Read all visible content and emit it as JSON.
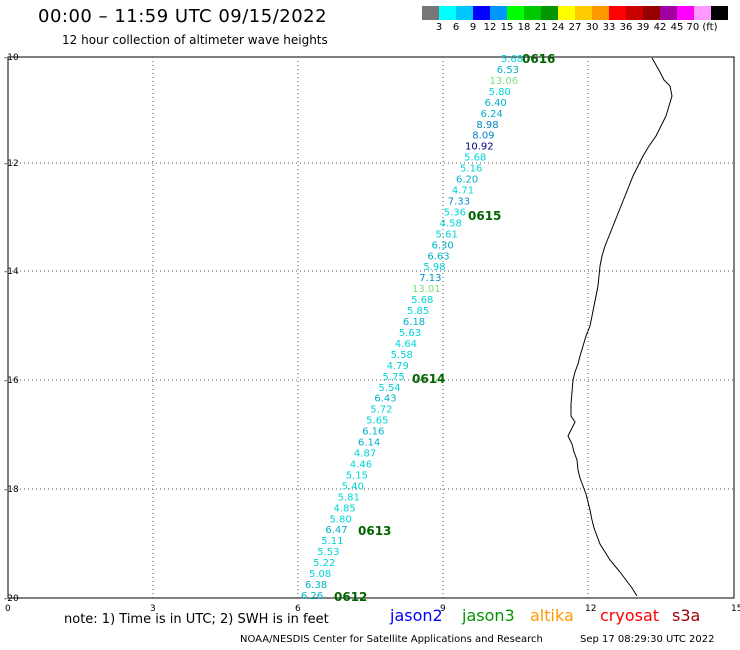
{
  "title": "00:00 – 11:59 UTC 09/15/2022",
  "subtitle": "12 hour collection of altimeter wave heights",
  "legend": {
    "colors": [
      "#777777",
      "#00ffff",
      "#00c8ff",
      "#0000ff",
      "#0098ff",
      "#00ff00",
      "#00c800",
      "#009600",
      "#ffff00",
      "#ffcc00",
      "#ff9900",
      "#ff0000",
      "#c80000",
      "#960000",
      "#a000a0",
      "#ff00ff",
      "#ff99ff",
      "#000000"
    ],
    "labels": [
      "3",
      "6",
      "9",
      "12",
      "15",
      "18",
      "21",
      "24",
      "27",
      "30",
      "33",
      "36",
      "39",
      "42",
      "45",
      "70 (ft)"
    ]
  },
  "axes": {
    "y_labels": [
      "-10",
      "-12",
      "-14",
      "-16",
      "-18",
      "-20"
    ],
    "x_labels": [
      "0",
      "3",
      "6",
      "9",
      "12",
      "15"
    ]
  },
  "times": [
    "0616",
    "0615",
    "0614",
    "0613",
    "0612"
  ],
  "points": [
    {
      "v": "5.68",
      "c": "#00d6d6"
    },
    {
      "v": "6.53",
      "c": "#00b0c8"
    },
    {
      "v": "13.06",
      "c": "#7ee07e"
    },
    {
      "v": "5.80",
      "c": "#00d6d6"
    },
    {
      "v": "6.40",
      "c": "#00b0c8"
    },
    {
      "v": "6.24",
      "c": "#00b0c8"
    },
    {
      "v": "8.98",
      "c": "#0080c0"
    },
    {
      "v": "8.09",
      "c": "#0080c0"
    },
    {
      "v": "10.92",
      "c": "#000080"
    },
    {
      "v": "5.68",
      "c": "#00d6d6"
    },
    {
      "v": "5.16",
      "c": "#00d6d6"
    },
    {
      "v": "6.20",
      "c": "#00b0c8"
    },
    {
      "v": "4.71",
      "c": "#00d6d6"
    },
    {
      "v": "7.33",
      "c": "#0090c8"
    },
    {
      "v": "5.36",
      "c": "#00d6d6"
    },
    {
      "v": "4.58",
      "c": "#00d6d6"
    },
    {
      "v": "5.61",
      "c": "#00d6d6"
    },
    {
      "v": "6.30",
      "c": "#00b0c8"
    },
    {
      "v": "6.63",
      "c": "#00b0c8"
    },
    {
      "v": "5.98",
      "c": "#00d6d6"
    },
    {
      "v": "7.13",
      "c": "#0090c8"
    },
    {
      "v": "13.01",
      "c": "#7ee07e"
    },
    {
      "v": "5.68",
      "c": "#00d6d6"
    },
    {
      "v": "5.85",
      "c": "#00d6d6"
    },
    {
      "v": "6.18",
      "c": "#00b0c8"
    },
    {
      "v": "5.63",
      "c": "#00d6d6"
    },
    {
      "v": "4.64",
      "c": "#00d6d6"
    },
    {
      "v": "5.58",
      "c": "#00d6d6"
    },
    {
      "v": "4.79",
      "c": "#00d6d6"
    },
    {
      "v": "5.75",
      "c": "#00d6d6"
    },
    {
      "v": "5.54",
      "c": "#00d6d6"
    },
    {
      "v": "6.43",
      "c": "#00b0c8"
    },
    {
      "v": "5.72",
      "c": "#00d6d6"
    },
    {
      "v": "5.65",
      "c": "#00d6d6"
    },
    {
      "v": "6.16",
      "c": "#00b0c8"
    },
    {
      "v": "6.14",
      "c": "#00b0c8"
    },
    {
      "v": "4.87",
      "c": "#00d6d6"
    },
    {
      "v": "4.46",
      "c": "#00d6d6"
    },
    {
      "v": "5.15",
      "c": "#00d6d6"
    },
    {
      "v": "5.40",
      "c": "#00d6d6"
    },
    {
      "v": "5.81",
      "c": "#00d6d6"
    },
    {
      "v": "4.85",
      "c": "#00d6d6"
    },
    {
      "v": "5.80",
      "c": "#00d6d6"
    },
    {
      "v": "6.47",
      "c": "#00b0c8"
    },
    {
      "v": "5.11",
      "c": "#00d6d6"
    },
    {
      "v": "5.53",
      "c": "#00d6d6"
    },
    {
      "v": "5.22",
      "c": "#00d6d6"
    },
    {
      "v": "5.08",
      "c": "#00d6d6"
    },
    {
      "v": "6.38",
      "c": "#00b0c8"
    },
    {
      "v": "6.26",
      "c": "#00b0c8"
    }
  ],
  "note": "note: 1) Time is in UTC; 2) SWH is in feet",
  "satellites": [
    {
      "name": "jason2",
      "color": "#0000ff"
    },
    {
      "name": "jason3",
      "color": "#009600"
    },
    {
      "name": "altika",
      "color": "#ff9900"
    },
    {
      "name": "cryosat",
      "color": "#ff0000"
    },
    {
      "name": "s3a",
      "color": "#960000"
    }
  ],
  "credit": "NOAA/NESDIS Center for Satellite Applications and Research",
  "timestamp": "Sep 17 08:29:30 UTC 2022"
}
